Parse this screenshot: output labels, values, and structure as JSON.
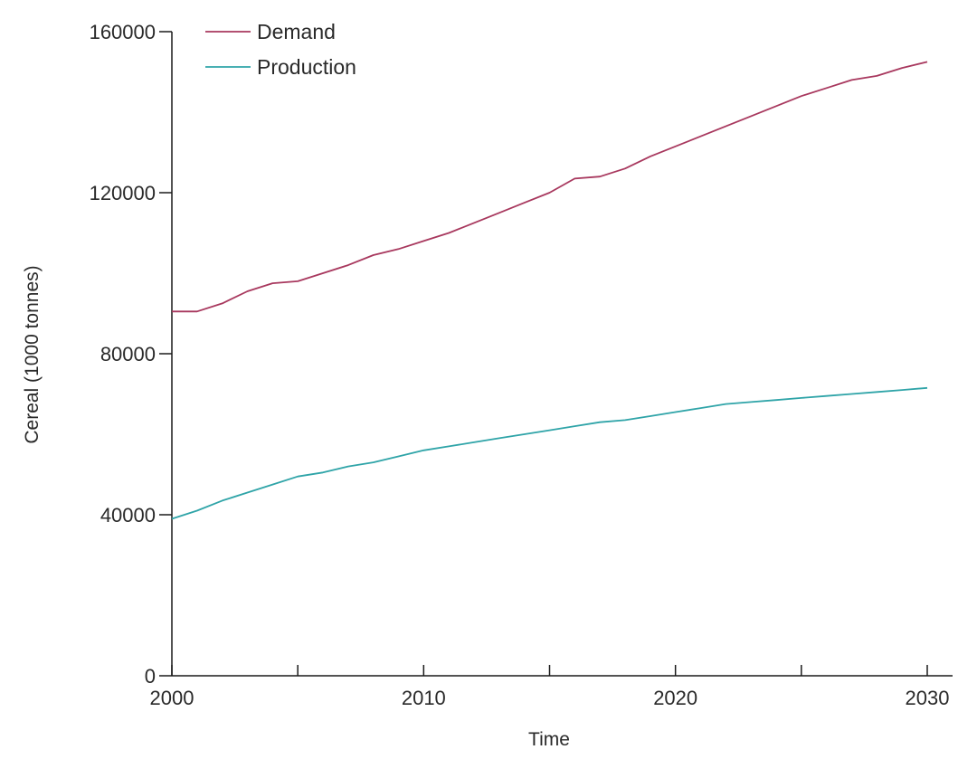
{
  "chart_data": {
    "type": "line",
    "xlabel": "Time",
    "ylabel": "Cereal (1000 tonnes)",
    "xlim": [
      2000,
      2030
    ],
    "ylim": [
      0,
      160000
    ],
    "x_ticks": [
      2000,
      2005,
      2010,
      2015,
      2020,
      2025,
      2030
    ],
    "x_tick_labels": [
      "2000",
      "",
      "2010",
      "",
      "2020",
      "",
      "2030"
    ],
    "y_ticks": [
      0,
      40000,
      80000,
      120000,
      160000
    ],
    "y_tick_labels": [
      "0",
      "40000",
      "80000",
      "120000",
      "160000"
    ],
    "grid": false,
    "legend_position": "top-left",
    "series": [
      {
        "name": "Demand",
        "color": "#a8385e",
        "x": [
          2000,
          2001,
          2002,
          2003,
          2004,
          2005,
          2006,
          2007,
          2008,
          2009,
          2010,
          2011,
          2012,
          2013,
          2014,
          2015,
          2016,
          2017,
          2018,
          2019,
          2020,
          2021,
          2022,
          2023,
          2024,
          2025,
          2026,
          2027,
          2028,
          2029,
          2030
        ],
        "values": [
          90500,
          90500,
          92500,
          95500,
          97500,
          98000,
          100000,
          102000,
          104500,
          106000,
          108000,
          110000,
          112500,
          115000,
          117500,
          120000,
          123500,
          124000,
          126000,
          129000,
          131500,
          134000,
          136500,
          139000,
          141500,
          144000,
          146000,
          148000,
          149000,
          151000,
          152500
        ]
      },
      {
        "name": "Production",
        "color": "#2fa4a8",
        "x": [
          2000,
          2001,
          2002,
          2003,
          2004,
          2005,
          2006,
          2007,
          2008,
          2009,
          2010,
          2011,
          2012,
          2013,
          2014,
          2015,
          2016,
          2017,
          2018,
          2019,
          2020,
          2021,
          2022,
          2023,
          2024,
          2025,
          2026,
          2027,
          2028,
          2029,
          2030
        ],
        "values": [
          39000,
          41000,
          43500,
          45500,
          47500,
          49500,
          50500,
          52000,
          53000,
          54500,
          56000,
          57000,
          58000,
          59000,
          60000,
          61000,
          62000,
          63000,
          63500,
          64500,
          65500,
          66500,
          67500,
          68000,
          68500,
          69000,
          69500,
          70000,
          70500,
          71000,
          71500
        ]
      }
    ]
  }
}
